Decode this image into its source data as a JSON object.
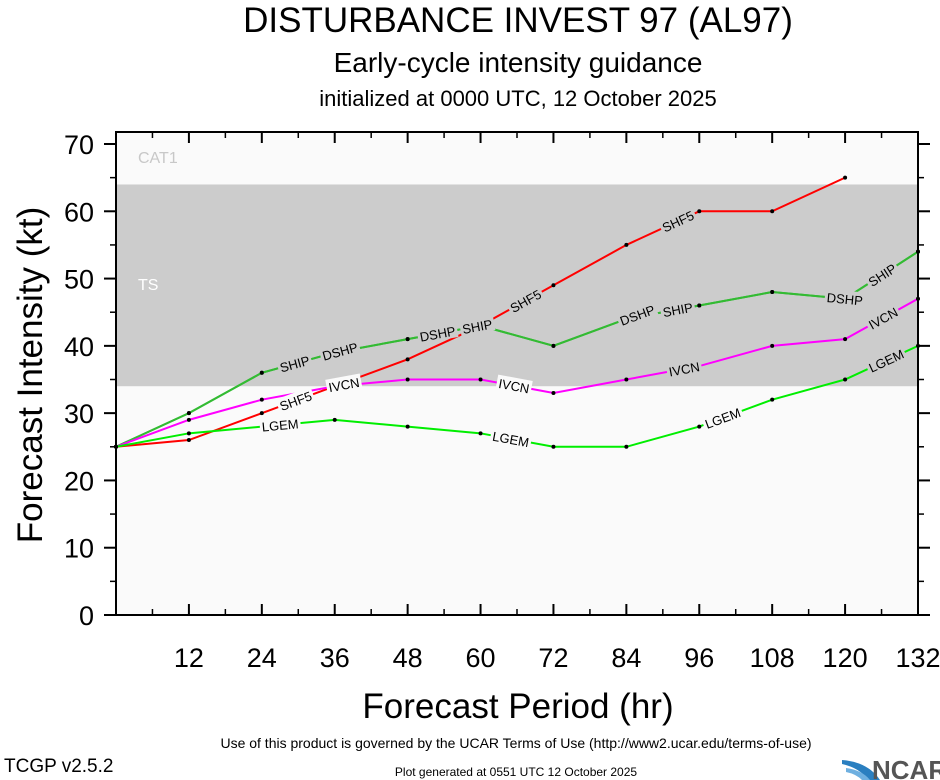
{
  "chart_data": {
    "type": "line",
    "title": "DISTURBANCE INVEST 97 (AL97)",
    "subtitle": "Early-cycle intensity guidance",
    "subtitle2": "initialized at 0000 UTC, 12 October 2025",
    "xlabel": "Forecast Period (hr)",
    "ylabel": "Forecast Intensity (kt)",
    "xlim": [
      0,
      132
    ],
    "ylim": [
      0,
      72
    ],
    "xticks": [
      12,
      24,
      36,
      48,
      60,
      72,
      84,
      96,
      108,
      120,
      132
    ],
    "yticks": [
      0,
      10,
      20,
      30,
      40,
      50,
      60,
      70
    ],
    "grid": false,
    "legend": "inline labels on lines",
    "bands": [
      {
        "label": "TS",
        "from": 34,
        "to": 64,
        "color": "#cccccc"
      },
      {
        "label": "CAT1",
        "from": 64,
        "to": 83,
        "color": "#fafafa"
      }
    ],
    "background": "#fafafa",
    "series": [
      {
        "name": "SHIP",
        "color": "#33bb33",
        "x": [
          0,
          12,
          24,
          36,
          48,
          60,
          72,
          84,
          96,
          108,
          120,
          132
        ],
        "y": [
          25,
          30,
          36,
          39,
          41,
          43,
          40,
          44,
          46,
          48,
          47,
          54
        ]
      },
      {
        "name": "DSHP",
        "color": "#33bb33",
        "x": [
          0,
          12,
          24,
          36,
          48,
          60,
          72,
          84,
          96,
          108,
          120,
          132
        ],
        "y": [
          25,
          30,
          36,
          39,
          41,
          43,
          40,
          44,
          46,
          48,
          47,
          54
        ]
      },
      {
        "name": "SHF5",
        "color": "#ff0000",
        "x": [
          0,
          12,
          24,
          36,
          48,
          60,
          72,
          84,
          96,
          108,
          120
        ],
        "y": [
          25,
          26,
          30,
          34,
          38,
          43,
          49,
          55,
          60,
          60,
          65
        ]
      },
      {
        "name": "IVCN",
        "color": "#ff00ff",
        "x": [
          0,
          12,
          24,
          36,
          48,
          60,
          72,
          84,
          96,
          108,
          120,
          132
        ],
        "y": [
          25,
          29,
          32,
          34,
          35,
          35,
          33,
          35,
          37,
          40,
          41,
          47
        ]
      },
      {
        "name": "LGEM",
        "color": "#00ee00",
        "x": [
          0,
          12,
          24,
          36,
          48,
          60,
          72,
          84,
          96,
          108,
          120,
          132
        ],
        "y": [
          25,
          27,
          28,
          29,
          28,
          27,
          25,
          25,
          28,
          32,
          35,
          40
        ]
      }
    ]
  },
  "footer": {
    "terms": "Use of this product is governed by the UCAR Terms of Use (http://www2.ucar.edu/terms-of-use)",
    "version": "TCGP v2.5.2",
    "generated": "Plot generated at 0551 UTC   12 October 2025",
    "logo": "NCAR"
  }
}
